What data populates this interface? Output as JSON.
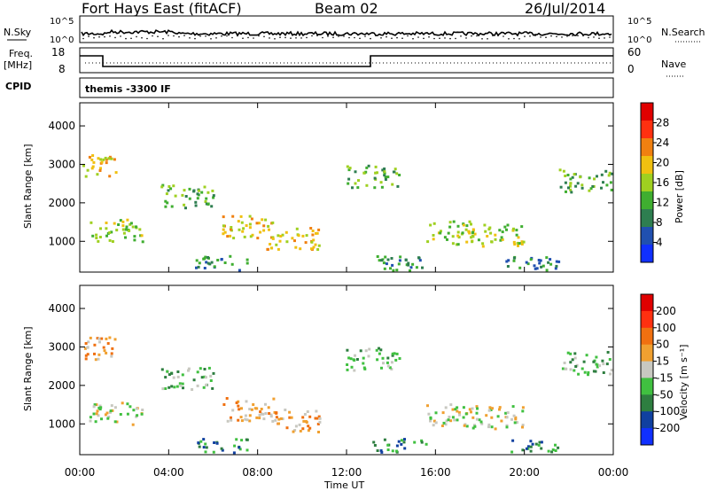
{
  "header": {
    "title": "Fort Hays East (fitACF)",
    "beam": "Beam 02",
    "date": "26/Jul/2014"
  },
  "strip_noise": {
    "left_label": "N.Sky",
    "right_label": "N.Search",
    "left_ticks": [
      "10^5",
      "10^0"
    ],
    "right_ticks": [
      "10^5",
      "10^0"
    ]
  },
  "strip_freq": {
    "left_label_1": "Freq.",
    "left_label_2": "[MHz]",
    "right_label": "Nave",
    "left_ticks": [
      "18",
      "8"
    ],
    "right_ticks": [
      "60",
      "0"
    ]
  },
  "cpid": {
    "label": "CPID",
    "value": "themis -3300 IF"
  },
  "colors": {
    "power_scale": [
      "#1030ff",
      "#2050b0",
      "#2e7e50",
      "#3fae30",
      "#9fd020",
      "#f0c010",
      "#f08010",
      "#ff3010",
      "#e00000"
    ],
    "velocity_scale": [
      "#1030ff",
      "#1040a0",
      "#2e7e40",
      "#40c040",
      "#c8c8c0",
      "#f0a030",
      "#f07010",
      "#ff3010",
      "#e00000"
    ]
  },
  "chart_data": [
    {
      "type": "heatmap",
      "name": "power",
      "ylabel": "Slant Range [km]",
      "yticks": [
        "1000",
        "2000",
        "3000",
        "4000"
      ],
      "ylim": [
        200,
        4600
      ],
      "colorbar_label": "Power [dB]",
      "colorbar_ticks": [
        "4",
        "8",
        "12",
        "16",
        "20",
        "24",
        "28"
      ],
      "colorbar_range": [
        0,
        32
      ]
    },
    {
      "type": "heatmap",
      "name": "velocity",
      "ylabel": "Slant Range [km]",
      "yticks": [
        "1000",
        "2000",
        "3000",
        "4000"
      ],
      "ylim": [
        200,
        4600
      ],
      "colorbar_label": "Velocity [m s⁻¹]",
      "colorbar_ticks": [
        "200",
        "100",
        "50",
        "15",
        "-15",
        "-50",
        "-100",
        "-200"
      ]
    }
  ],
  "x_axis": {
    "label": "Time UT",
    "ticks": [
      "00:00",
      "04:00",
      "08:00",
      "12:00",
      "16:00",
      "20:00",
      "00:00"
    ]
  }
}
